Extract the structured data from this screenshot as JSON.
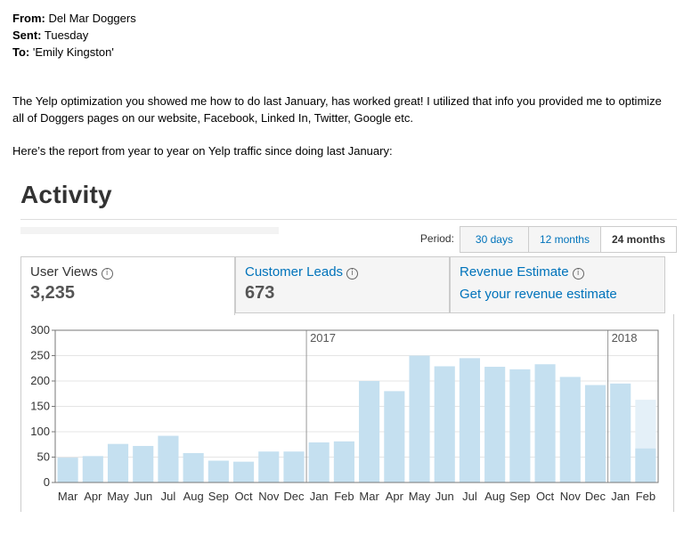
{
  "email": {
    "from_label": "From:",
    "from_value": "Del Mar Doggers",
    "sent_label": "Sent:",
    "sent_value": "Tuesday",
    "to_label": "To:",
    "to_value": "'Emily Kingston'",
    "paragraph1": "The  Yelp optimization you showed me how to do last January, has worked great!  I utilized that info you provided me to optimize all of Doggers pages on our website, Facebook, Linked In, Twitter, Google etc.",
    "paragraph2": "Here’s the report from year to year on Yelp traffic since doing last January:"
  },
  "activity": {
    "title": "Activity",
    "period_label": "Period:",
    "periods": [
      {
        "label": "30 days",
        "active": false
      },
      {
        "label": "12 months",
        "active": false
      },
      {
        "label": "24 months",
        "active": true
      }
    ],
    "tabs": [
      {
        "label": "User Views",
        "value": "3,235",
        "active": true
      },
      {
        "label": "Customer Leads",
        "value": "673",
        "active": false
      },
      {
        "label": "Revenue Estimate",
        "link": "Get your revenue estimate",
        "active": false
      }
    ],
    "info_icon": "i"
  },
  "chart_data": {
    "type": "bar",
    "categories": [
      "Mar",
      "Apr",
      "May",
      "Jun",
      "Jul",
      "Aug",
      "Sep",
      "Oct",
      "Nov",
      "Dec",
      "Jan",
      "Feb",
      "Mar",
      "Apr",
      "May",
      "Jun",
      "Jul",
      "Aug",
      "Sep",
      "Oct",
      "Nov",
      "Dec",
      "Jan",
      "Feb"
    ],
    "values": [
      49,
      52,
      76,
      72,
      92,
      58,
      43,
      41,
      61,
      61,
      79,
      81,
      200,
      180,
      250,
      229,
      245,
      228,
      223,
      233,
      208,
      192,
      195,
      67
    ],
    "projected_last": 163,
    "ylim": [
      0,
      300
    ],
    "yticks": [
      0,
      50,
      100,
      150,
      200,
      250,
      300
    ],
    "year_markers": [
      {
        "label": "2017",
        "index": 10
      },
      {
        "label": "2018",
        "index": 22
      }
    ],
    "colors": {
      "bar": "#c5e0f0",
      "projected": "#e4f0f8",
      "grid": "#e5e5e5",
      "axis": "#777777"
    }
  }
}
